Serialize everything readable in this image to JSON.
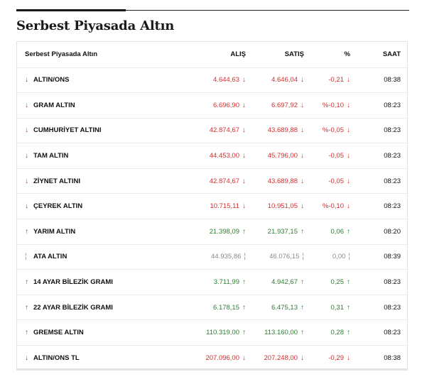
{
  "page": {
    "title": "Serbest Piyasada Altın"
  },
  "table": {
    "headers": {
      "name": "Serbest Piyasada Altın",
      "alis": "ALIŞ",
      "satis": "SATIŞ",
      "pct": "%",
      "saat": "SAAT"
    },
    "rows": [
      {
        "name": "ALTIN/ONS",
        "dir": "down",
        "alis": "4.644,63",
        "alis_dir": "down",
        "satis": "4.646,04",
        "satis_dir": "down",
        "pct": "-0,21",
        "pct_dir": "down",
        "saat": "08:38"
      },
      {
        "name": "GRAM ALTIN",
        "dir": "down",
        "alis": "6.696,90",
        "alis_dir": "down",
        "satis": "6.697,92",
        "satis_dir": "down",
        "pct": "%-0,10",
        "pct_dir": "down",
        "saat": "08:23"
      },
      {
        "name": "CUMHURİYET ALTINI",
        "dir": "down",
        "alis": "42.874,67",
        "alis_dir": "down",
        "satis": "43.689,88",
        "satis_dir": "down",
        "pct": "%-0,05",
        "pct_dir": "down",
        "saat": "08:23"
      },
      {
        "name": "TAM ALTIN",
        "dir": "down",
        "alis": "44.453,00",
        "alis_dir": "down",
        "satis": "45.796,00",
        "satis_dir": "down",
        "pct": "-0,05",
        "pct_dir": "down",
        "saat": "08:23"
      },
      {
        "name": "ZİYNET ALTINI",
        "dir": "down",
        "alis": "42.874,67",
        "alis_dir": "down",
        "satis": "43.689,88",
        "satis_dir": "down",
        "pct": "-0,05",
        "pct_dir": "down",
        "saat": "08:23"
      },
      {
        "name": "ÇEYREK ALTIN",
        "dir": "down",
        "alis": "10.715,11",
        "alis_dir": "down",
        "satis": "10.951,05",
        "satis_dir": "down",
        "pct": "%-0,10",
        "pct_dir": "down",
        "saat": "08:23"
      },
      {
        "name": "YARIM ALTIN",
        "dir": "up",
        "alis": "21.398,09",
        "alis_dir": "up",
        "satis": "21.937,15",
        "satis_dir": "up",
        "pct": "0,06",
        "pct_dir": "up",
        "saat": "08:20"
      },
      {
        "name": "ATA ALTIN",
        "dir": "flat",
        "alis": "44.935,86",
        "alis_dir": "flat",
        "satis": "46.076,15",
        "satis_dir": "flat",
        "pct": "0,00",
        "pct_dir": "flat",
        "saat": "08:39"
      },
      {
        "name": "14 AYAR BİLEZİK GRAMI",
        "dir": "up",
        "alis": "3.711,99",
        "alis_dir": "up",
        "satis": "4.942,67",
        "satis_dir": "up",
        "pct": "0,25",
        "pct_dir": "up",
        "saat": "08:23"
      },
      {
        "name": "22 AYAR BİLEZİK GRAMI",
        "dir": "up",
        "alis": "6.178,15",
        "alis_dir": "up",
        "satis": "6.475,13",
        "satis_dir": "up",
        "pct": "0,31",
        "pct_dir": "up",
        "saat": "08:23"
      },
      {
        "name": "GREMSE ALTIN",
        "dir": "up",
        "alis": "110.319,00",
        "alis_dir": "up",
        "satis": "113.160,00",
        "satis_dir": "up",
        "pct": "0,28",
        "pct_dir": "up",
        "saat": "08:23"
      },
      {
        "name": "ALTIN/ONS TL",
        "dir": "down",
        "alis": "207.096,00",
        "alis_dir": "down",
        "satis": "207.248,00",
        "satis_dir": "down",
        "pct": "-0,29",
        "pct_dir": "down",
        "saat": "08:38"
      }
    ]
  },
  "icons": {
    "down": "arrow-down-icon",
    "up": "arrow-up-icon",
    "flat": "neutral-dash-icon"
  },
  "colors": {
    "down": "#d32f2f",
    "up": "#2e7d32",
    "flat": "#8a8a8a"
  }
}
